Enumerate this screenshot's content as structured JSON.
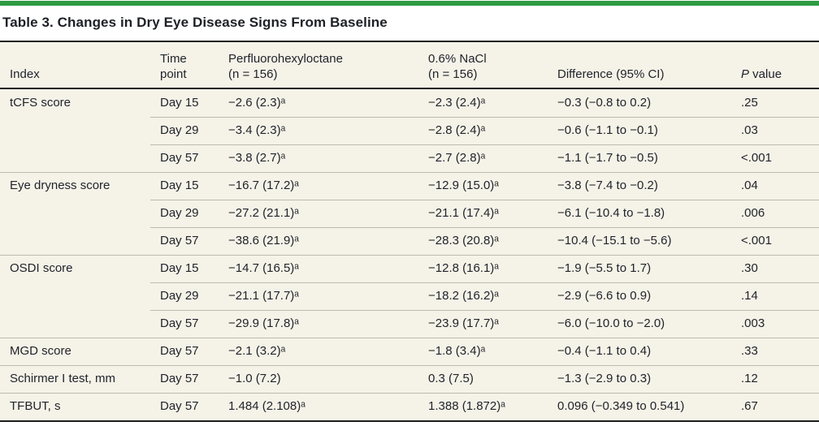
{
  "colors": {
    "accent_green": "#2e9b42",
    "table_background": "#f5f2e8",
    "rule_dark": "#1d1d1b",
    "rule_light": "#bdbab0",
    "text": "#21242a"
  },
  "title": "Table 3. Changes in Dry Eye Disease Signs From Baseline",
  "header": {
    "index": "Index",
    "time_line1": "Time",
    "time_line2": "point",
    "pfho_line1": "Perfluorohexyloctane",
    "pfho_line2": "(n = 156)",
    "nacl_line1": "0.6% NaCl",
    "nacl_line2": "(n = 156)",
    "difference": "Difference (95% CI)",
    "pvalue_italic": "P",
    "pvalue_rest": " value"
  },
  "rows": [
    {
      "index": "tCFS score",
      "time": "Day 15",
      "pfho": "−2.6 (2.3)ᵃ",
      "nacl": "−2.3 (2.4)ᵃ",
      "diff": "−0.3 (−0.8 to 0.2)",
      "p": ".25"
    },
    {
      "index": "",
      "time": "Day 29",
      "pfho": "−3.4 (2.3)ᵃ",
      "nacl": "−2.8 (2.4)ᵃ",
      "diff": "−0.6 (−1.1 to −0.1)",
      "p": ".03"
    },
    {
      "index": "",
      "time": "Day 57",
      "pfho": "−3.8 (2.7)ᵃ",
      "nacl": "−2.7 (2.8)ᵃ",
      "diff": "−1.1 (−1.7 to −0.5)",
      "p": "<.001"
    },
    {
      "index": "Eye dryness score",
      "time": "Day 15",
      "pfho": "−16.7 (17.2)ᵃ",
      "nacl": "−12.9 (15.0)ᵃ",
      "diff": "−3.8 (−7.4 to −0.2)",
      "p": ".04"
    },
    {
      "index": "",
      "time": "Day 29",
      "pfho": "−27.2 (21.1)ᵃ",
      "nacl": "−21.1 (17.4)ᵃ",
      "diff": "−6.1 (−10.4 to −1.8)",
      "p": ".006"
    },
    {
      "index": "",
      "time": "Day 57",
      "pfho": "−38.6 (21.9)ᵃ",
      "nacl": "−28.3 (20.8)ᵃ",
      "diff": "−10.4 (−15.1 to −5.6)",
      "p": "<.001"
    },
    {
      "index": "OSDI score",
      "time": "Day 15",
      "pfho": "−14.7 (16.5)ᵃ",
      "nacl": "−12.8 (16.1)ᵃ",
      "diff": "−1.9 (−5.5 to 1.7)",
      "p": ".30"
    },
    {
      "index": "",
      "time": "Day 29",
      "pfho": "−21.1 (17.7)ᵃ",
      "nacl": "−18.2 (16.2)ᵃ",
      "diff": "−2.9 (−6.6 to 0.9)",
      "p": ".14"
    },
    {
      "index": "",
      "time": "Day 57",
      "pfho": "−29.9 (17.8)ᵃ",
      "nacl": "−23.9 (17.7)ᵃ",
      "diff": "−6.0 (−10.0 to −2.0)",
      "p": ".003"
    },
    {
      "index": "MGD score",
      "time": "Day 57",
      "pfho": "−2.1 (3.2)ᵃ",
      "nacl": "−1.8 (3.4)ᵃ",
      "diff": "−0.4 (−1.1 to 0.4)",
      "p": ".33"
    },
    {
      "index": "Schirmer I test, mm",
      "time": "Day 57",
      "pfho": "−1.0 (7.2)",
      "nacl": "0.3 (7.5)",
      "diff": "−1.3 (−2.9 to 0.3)",
      "p": ".12"
    },
    {
      "index": "TFBUT, s",
      "time": "Day 57",
      "pfho": "1.484 (2.108)ᵃ",
      "nacl": "1.388 (1.872)ᵃ",
      "diff": "0.096 (−0.349 to 0.541)",
      "p": ".67"
    }
  ]
}
